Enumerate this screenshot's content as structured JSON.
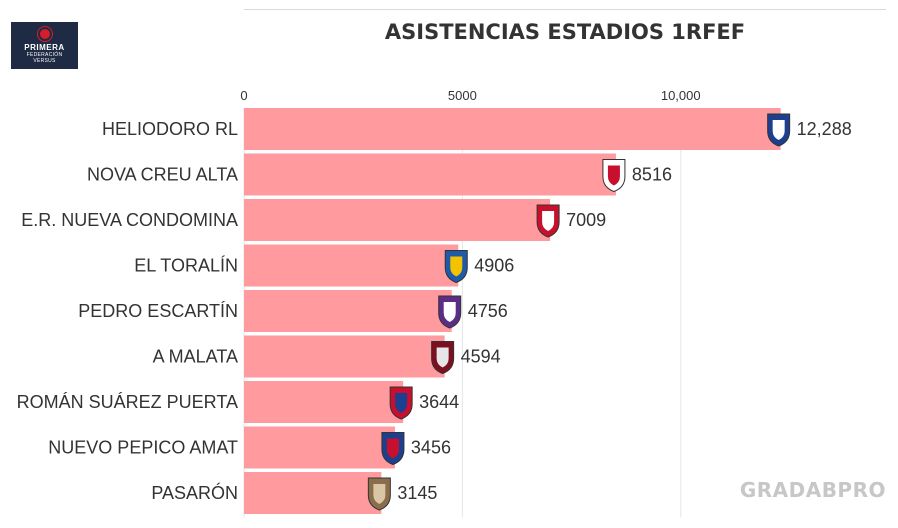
{
  "header": {
    "logo_line1": "PRIMERA",
    "logo_line2": "FEDERACIÓN",
    "logo_line3": "VERSUS"
  },
  "watermark": "GRADABPRO",
  "colors": {
    "bar": "#ff9a9e",
    "bar_edge": "#ffffff",
    "text": "#333333",
    "grid": "#e6e6e6"
  },
  "chart_data": {
    "type": "bar",
    "orientation": "horizontal",
    "title": "ASISTENCIAS ESTADIOS 1RFEF",
    "categories": [
      "HELIODORO RL",
      "NOVA CREU ALTA",
      "E.R. NUEVA CONDOMINA",
      "EL TORALÍN",
      "PEDRO ESCARTÍN",
      "A MALATA",
      "ROMÁN SUÁREZ PUERTA",
      "NUEVO PEPICO AMAT",
      "PASARÓN"
    ],
    "values": [
      12288,
      8516,
      7009,
      4906,
      4756,
      4594,
      3644,
      3456,
      3145
    ],
    "value_labels": [
      "12,288",
      "8516",
      "7009",
      "4906",
      "4756",
      "4594",
      "3644",
      "3456",
      "3145"
    ],
    "team_crests": [
      "cd-tenerife-crest-icon",
      "ce-sabadell-crest-icon",
      "real-murcia-crest-icon",
      "ponferradina-crest-icon",
      "cd-guadalajara-crest-icon",
      "racing-ferrol-crest-icon",
      "ud-logrones-crest-icon",
      "cd-eldense-crest-icon",
      "pontevedra-cf-crest-icon"
    ],
    "xticks": [
      0,
      5000,
      10000
    ],
    "xtick_labels": [
      "0",
      "5000",
      "10,000"
    ],
    "xlim": [
      0,
      14700
    ],
    "axis_position": "top",
    "grid": true,
    "xlabel": "",
    "ylabel": ""
  }
}
